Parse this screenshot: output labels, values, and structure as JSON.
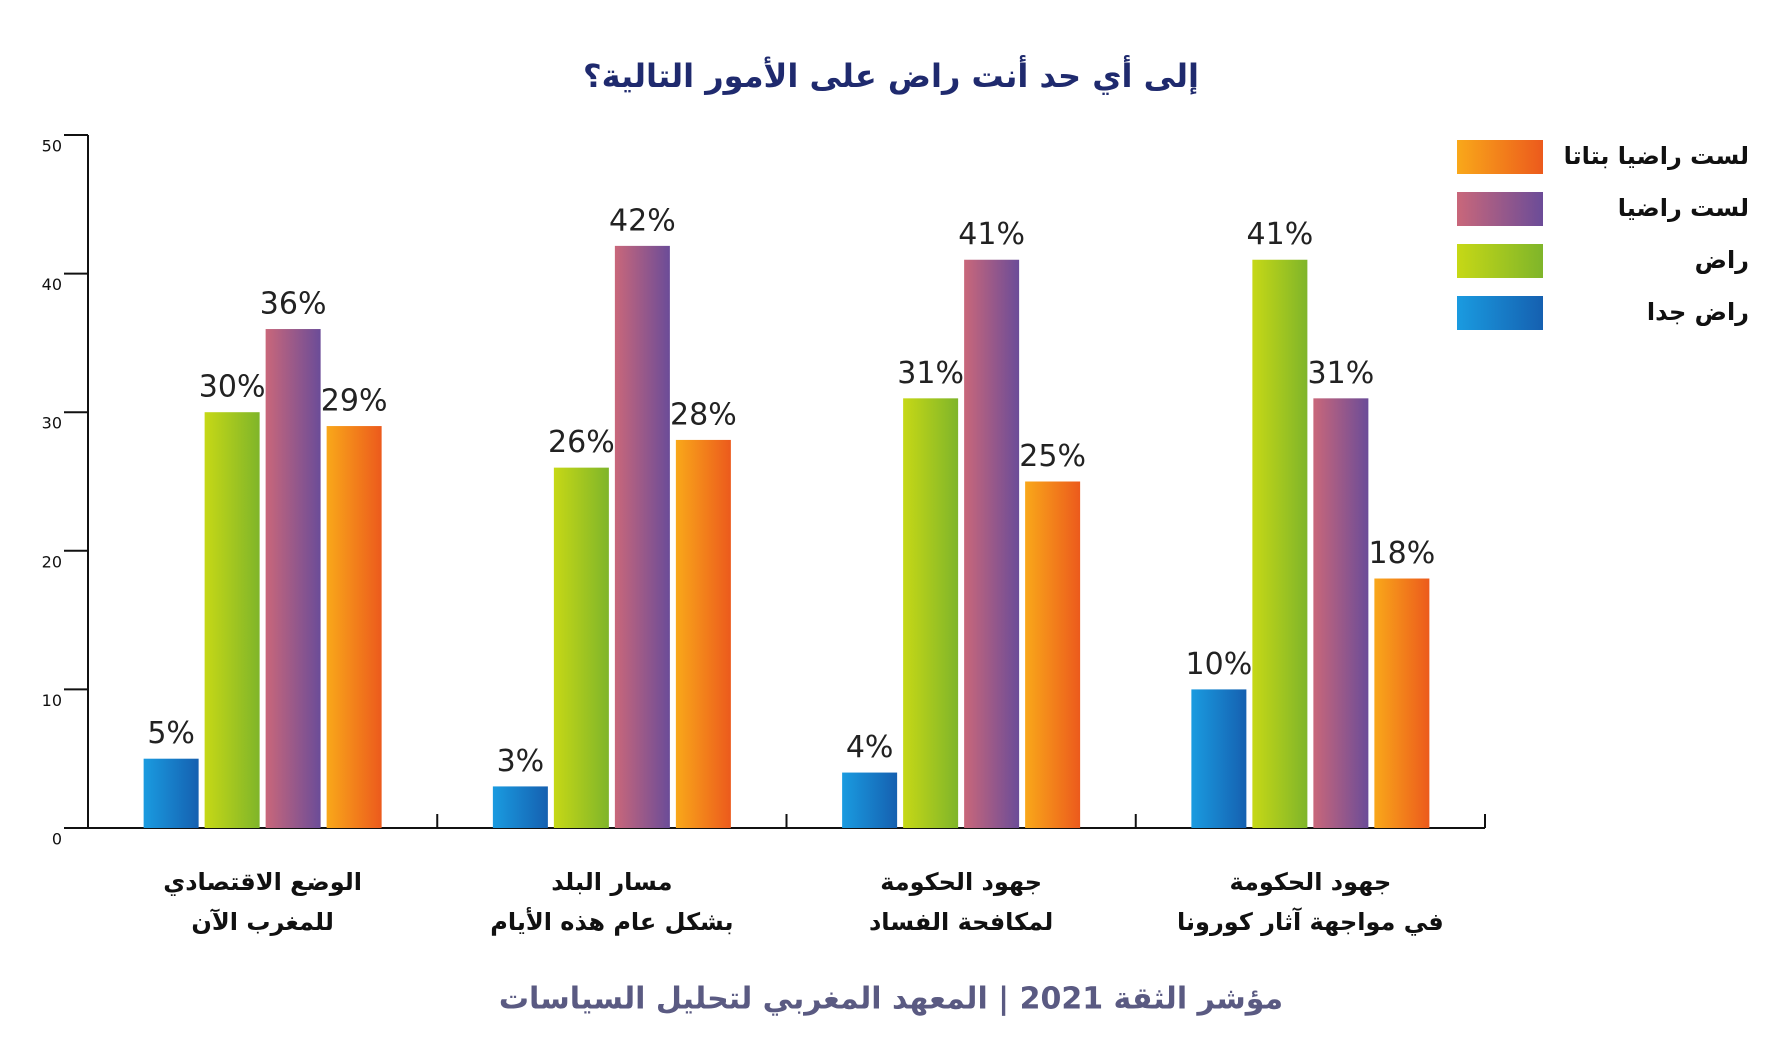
{
  "chart_data": {
    "type": "bar",
    "title": "إلى أي حد أنت راض على الأمور التالية؟",
    "source": "مؤشر الثقة 2021 | المعهد المغربي لتحليل السياسات",
    "categories": [
      "الوضع الاقتصادي\nللمغرب الآن",
      "مسار البلد\nبشكل عام هذه الأيام",
      "جهود الحكومة\nلمكافحة الفساد",
      "جهود الحكومة\nفي مواجهة آثار كورونا"
    ],
    "series": [
      {
        "name": "راض جدا",
        "color": "#1a9be0",
        "color2": "#1560b0",
        "values": [
          5,
          3,
          4,
          10
        ],
        "value_labels": [
          "5%",
          "3%",
          "4%",
          "10%"
        ]
      },
      {
        "name": "راض",
        "color": "#c6d816",
        "color2": "#7fb52a",
        "values": [
          30,
          26,
          31,
          41
        ],
        "value_labels": [
          "30%",
          "26%",
          "31%",
          "41%"
        ]
      },
      {
        "name": "لست راضيا",
        "color": "#c9677a",
        "color2": "#6b4c98",
        "values": [
          36,
          42,
          41,
          31
        ],
        "value_labels": [
          "36%",
          "42%",
          "41%",
          "31%"
        ]
      },
      {
        "name": "لست راضيا بتاتا",
        "color": "#f9a81a",
        "color2": "#ec5a1c",
        "values": [
          29,
          28,
          25,
          18
        ],
        "value_labels": [
          "29%",
          "28%",
          "25%",
          "18%"
        ]
      }
    ],
    "ylim": [
      0,
      50
    ],
    "yticks": [
      0,
      10,
      20,
      30,
      40,
      50
    ],
    "legend": "top-right",
    "grid": false
  }
}
